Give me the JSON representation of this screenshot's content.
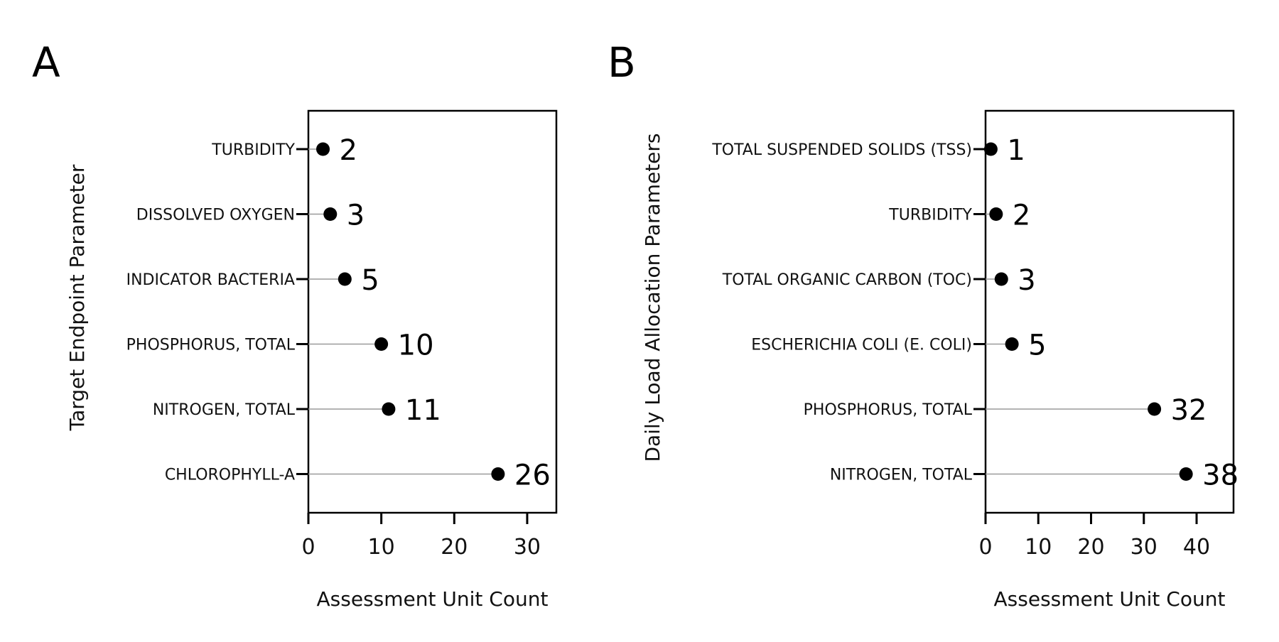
{
  "chart_data": [
    {
      "type": "lollipop",
      "panel": "A",
      "ylabel": "Target Endpoint Parameter",
      "xlabel": "Assessment Unit Count",
      "xlim": [
        0,
        34
      ],
      "xticks": [
        0,
        10,
        20,
        30
      ],
      "categories": [
        "TURBIDITY",
        "DISSOLVED OXYGEN",
        "INDICATOR BACTERIA",
        "PHOSPHORUS, TOTAL",
        "NITROGEN, TOTAL",
        "CHLOROPHYLL-A"
      ],
      "values": [
        2,
        3,
        5,
        10,
        11,
        26
      ],
      "grid": false
    },
    {
      "type": "lollipop",
      "panel": "B",
      "ylabel": "Daily Load Allocation Parameters",
      "xlabel": "Assessment Unit Count",
      "xlim": [
        0,
        47
      ],
      "xticks": [
        0,
        10,
        20,
        30,
        40
      ],
      "categories": [
        "TOTAL SUSPENDED SOLIDS (TSS)",
        "TURBIDITY",
        "TOTAL ORGANIC CARBON (TOC)",
        "ESCHERICHIA COLI (E. COLI)",
        "PHOSPHORUS, TOTAL",
        "NITROGEN, TOTAL"
      ],
      "values": [
        1,
        2,
        3,
        5,
        32,
        38
      ],
      "grid": false
    }
  ],
  "colors": {
    "marker": "#000000",
    "stem": "#9a9a9a",
    "axis": "#000000"
  }
}
